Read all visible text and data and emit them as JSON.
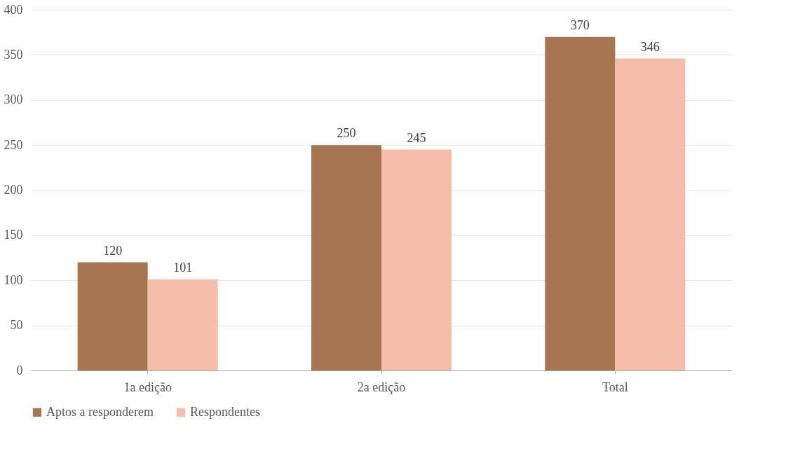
{
  "chart_data": {
    "type": "bar",
    "categories": [
      "1a edição",
      "2a edição",
      "Total"
    ],
    "series": [
      {
        "name": "Aptos a responderem",
        "color": "#a87551",
        "values": [
          120,
          250,
          370
        ]
      },
      {
        "name": "Respondentes",
        "color": "#f4bea8",
        "values": [
          101,
          245,
          346
        ]
      }
    ],
    "ylim": [
      0,
      400
    ],
    "yticks": [
      0,
      50,
      100,
      150,
      200,
      250,
      300,
      350,
      400
    ],
    "grid": "y",
    "legend": "bottom",
    "data_labels": true
  }
}
